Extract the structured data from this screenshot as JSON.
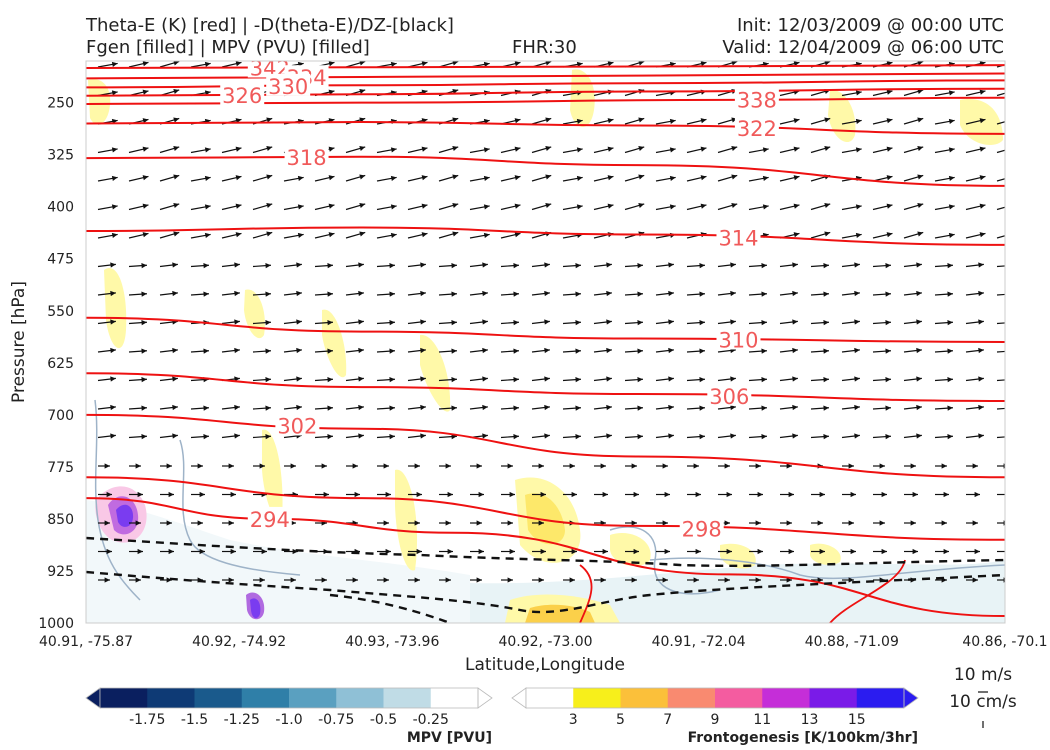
{
  "header": {
    "title_left_1": "Theta-E (K) [red] | -D(theta-E)/DZ-[black]",
    "title_left_2": "Fgen [filled] | MPV (PVU) [filled]",
    "fhr": "FHR:30",
    "init": "Init: 12/03/2009 @ 00:00 UTC",
    "valid": "Valid: 12/04/2009 @ 06:00 UTC"
  },
  "chart_data": {
    "type": "cross-section",
    "xlabel": "Latitude,Longitude",
    "ylabel": "Pressure [hPa]",
    "x_ticks": [
      "40.91, -75.87",
      "40.92, -74.92",
      "40.93, -73.96",
      "40.92, -73.00",
      "40.91, -72.04",
      "40.88, -71.09",
      "40.86, -70.1"
    ],
    "y_ticks": [
      250,
      325,
      400,
      475,
      550,
      625,
      700,
      775,
      850,
      925,
      1000
    ],
    "ylim": [
      1000,
      190
    ],
    "theta_e_contours": [
      {
        "label": "342",
        "points": [
          [
            0,
            200
          ],
          [
            0.3,
            199
          ],
          [
            0.6,
            198
          ],
          [
            1,
            196
          ]
        ]
      },
      {
        "label": "334",
        "points": [
          [
            0,
            215
          ],
          [
            0.3,
            213
          ],
          [
            0.6,
            211
          ],
          [
            1,
            208
          ]
        ]
      },
      {
        "label": "330",
        "points": [
          [
            0,
            228
          ],
          [
            0.3,
            225
          ],
          [
            0.6,
            222
          ],
          [
            1,
            218
          ]
        ]
      },
      {
        "label": "326",
        "points": [
          [
            0,
            240
          ],
          [
            0.3,
            238
          ],
          [
            0.6,
            234
          ],
          [
            1,
            230
          ]
        ]
      },
      {
        "label": "338",
        "points": [
          [
            0,
            252
          ],
          [
            0.3,
            250
          ],
          [
            0.7,
            246
          ],
          [
            1,
            243
          ]
        ]
      },
      {
        "label": "322",
        "points": [
          [
            0,
            280
          ],
          [
            0.3,
            278
          ],
          [
            0.6,
            283
          ],
          [
            1,
            295
          ]
        ]
      },
      {
        "label": "318",
        "points": [
          [
            0,
            330
          ],
          [
            0.3,
            328
          ],
          [
            0.6,
            340
          ],
          [
            1,
            370
          ]
        ]
      },
      {
        "label": "314",
        "points": [
          [
            0,
            435
          ],
          [
            0.3,
            430
          ],
          [
            0.6,
            440
          ],
          [
            1,
            455
          ]
        ]
      },
      {
        "label": "310",
        "points": [
          [
            0,
            560
          ],
          [
            0.3,
            580
          ],
          [
            0.6,
            590
          ],
          [
            1,
            595
          ]
        ]
      },
      {
        "label": "306",
        "points": [
          [
            0,
            640
          ],
          [
            0.3,
            660
          ],
          [
            0.6,
            670
          ],
          [
            1,
            680
          ]
        ]
      },
      {
        "label": "302",
        "points": [
          [
            0,
            700
          ],
          [
            0.3,
            720
          ],
          [
            0.6,
            760
          ],
          [
            1,
            790
          ]
        ]
      },
      {
        "label": "298",
        "points": [
          [
            0,
            790
          ],
          [
            0.3,
            820
          ],
          [
            0.6,
            860
          ],
          [
            1,
            880
          ]
        ]
      },
      {
        "label": "294",
        "points": [
          [
            0,
            820
          ],
          [
            0.2,
            850
          ],
          [
            0.4,
            870
          ],
          [
            0.7,
            930
          ],
          [
            1,
            990
          ]
        ]
      }
    ],
    "colorbars": [
      {
        "title": "MPV [PVU]",
        "labels": [
          "-1.75",
          "-1.5",
          "-1.25",
          "-1.0",
          "-0.75",
          "-0.5",
          "-0.25"
        ],
        "colors": [
          "#0a1f5f",
          "#0e3a75",
          "#1a5a8c",
          "#2f7fa8",
          "#5aa0c0",
          "#8fc0d6",
          "#c0dce6",
          "#ffffff"
        ]
      },
      {
        "title": "Frontogenesis [K/100km/3hr]",
        "labels": [
          "3",
          "5",
          "7",
          "9",
          "11",
          "13",
          "15"
        ],
        "colors": [
          "#ffffff",
          "#f7ef1b",
          "#fbc03a",
          "#f98a70",
          "#f45ca0",
          "#c52ed8",
          "#7a1be8",
          "#2b1cf0"
        ]
      }
    ],
    "vector_key": {
      "labels": [
        "10 m/s",
        "10 cm/s"
      ]
    }
  }
}
